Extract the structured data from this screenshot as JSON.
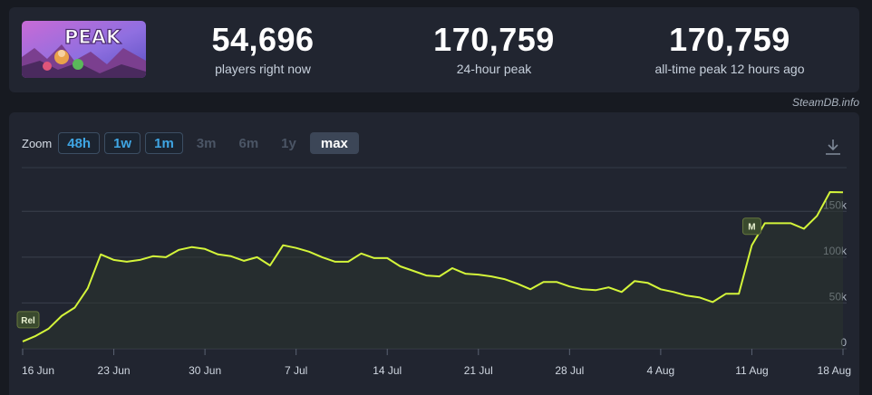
{
  "stats": [
    {
      "value": "54,696",
      "label": "players right now"
    },
    {
      "value": "170,759",
      "label": "24-hour peak"
    },
    {
      "value": "170,759",
      "label": "all-time peak 12 hours ago"
    }
  ],
  "game_logo_text": "PEAK",
  "credit": "SteamDB.info",
  "zoom": {
    "label": "Zoom",
    "buttons": [
      {
        "label": "48h",
        "state": "active"
      },
      {
        "label": "1w",
        "state": "active"
      },
      {
        "label": "1m",
        "state": "active"
      },
      {
        "label": "3m",
        "state": "disabled"
      },
      {
        "label": "6m",
        "state": "disabled"
      },
      {
        "label": "1y",
        "state": "disabled"
      },
      {
        "label": "max",
        "state": "selected"
      }
    ]
  },
  "icons": {
    "download": "download-icon"
  },
  "colors": {
    "line": "#d4f53a",
    "background": "#171a21",
    "panel": "#212530",
    "active_zoom": "#3fa6e4"
  },
  "chart_data": {
    "type": "line",
    "title": "",
    "xlabel": "",
    "ylabel": "",
    "ylim": [
      0,
      175000
    ],
    "y_ticks": [
      {
        "value": 0,
        "label": "0"
      },
      {
        "value": 50000,
        "label": "50k"
      },
      {
        "value": 100000,
        "label": "100k"
      },
      {
        "value": 150000,
        "label": "150k"
      }
    ],
    "x_ticks": [
      "16 Jun",
      "23 Jun",
      "30 Jun",
      "7 Jul",
      "14 Jul",
      "21 Jul",
      "28 Jul",
      "4 Aug",
      "11 Aug",
      "18 Aug"
    ],
    "x_start": "2025-06-16",
    "grid": true,
    "markers": [
      {
        "label": "Rel",
        "date": "2025-06-16"
      },
      {
        "label": "M",
        "date": "2025-08-11"
      }
    ],
    "series": [
      {
        "x": [
          "2025-06-16",
          "2025-06-17",
          "2025-06-18",
          "2025-06-19",
          "2025-06-20",
          "2025-06-21",
          "2025-06-22",
          "2025-06-23",
          "2025-06-24",
          "2025-06-25",
          "2025-06-26",
          "2025-06-27",
          "2025-06-28",
          "2025-06-29",
          "2025-06-30",
          "2025-07-01",
          "2025-07-02",
          "2025-07-03",
          "2025-07-04",
          "2025-07-05",
          "2025-07-06",
          "2025-07-07",
          "2025-07-08",
          "2025-07-09",
          "2025-07-10",
          "2025-07-11",
          "2025-07-12",
          "2025-07-13",
          "2025-07-14",
          "2025-07-15",
          "2025-07-16",
          "2025-07-17",
          "2025-07-18",
          "2025-07-19",
          "2025-07-20",
          "2025-07-21",
          "2025-07-22",
          "2025-07-23",
          "2025-07-24",
          "2025-07-25",
          "2025-07-26",
          "2025-07-27",
          "2025-07-28",
          "2025-07-29",
          "2025-07-30",
          "2025-07-31",
          "2025-08-01",
          "2025-08-02",
          "2025-08-03",
          "2025-08-04",
          "2025-08-05",
          "2025-08-06",
          "2025-08-07",
          "2025-08-08",
          "2025-08-09",
          "2025-08-10",
          "2025-08-11",
          "2025-08-12",
          "2025-08-13",
          "2025-08-14",
          "2025-08-15",
          "2025-08-16",
          "2025-08-17",
          "2025-08-18"
        ],
        "values": [
          8000,
          14000,
          22000,
          36000,
          45000,
          66000,
          103000,
          97000,
          95000,
          97000,
          101000,
          100000,
          108000,
          111000,
          109000,
          103000,
          101000,
          96000,
          100000,
          91000,
          113000,
          110000,
          106000,
          100000,
          95000,
          95000,
          104000,
          99000,
          99000,
          90000,
          85000,
          80000,
          79000,
          88000,
          82000,
          81000,
          79000,
          76000,
          71000,
          65000,
          73000,
          73000,
          68000,
          65000,
          64000,
          67000,
          62000,
          74000,
          72000,
          65000,
          62000,
          58000,
          56000,
          51000,
          60000,
          60000,
          113000,
          137000,
          137000,
          137000,
          131000,
          145000,
          171000,
          170759
        ]
      }
    ]
  }
}
